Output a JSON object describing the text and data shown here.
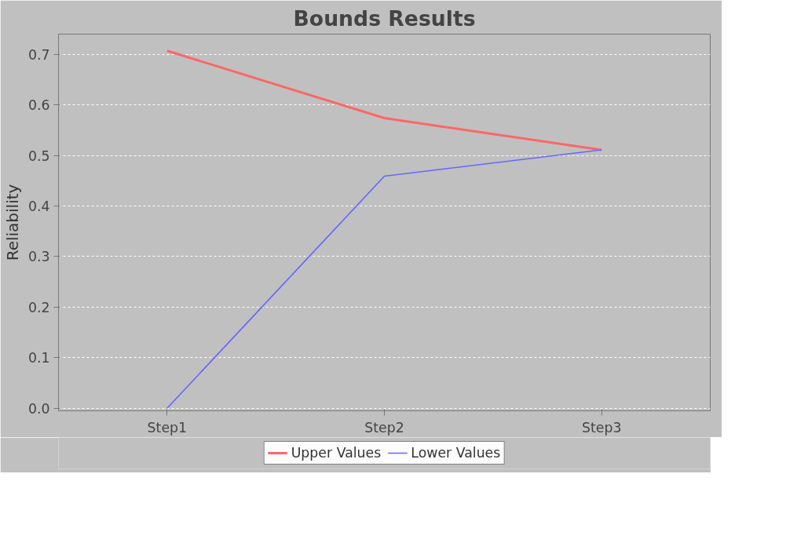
{
  "chart_data": {
    "type": "line",
    "title": "Bounds Results",
    "ylabel": "Reliability",
    "categories": [
      "Step1",
      "Step2",
      "Step3"
    ],
    "series": [
      {
        "name": "Upper Values",
        "color": "#ff6666",
        "values": [
          0.707,
          0.574,
          0.511
        ]
      },
      {
        "name": "Lower Values",
        "color": "#6666ff",
        "values": [
          0.0,
          0.459,
          0.511
        ]
      }
    ],
    "ylim": [
      -0.005,
      0.74
    ],
    "yticks": [
      {
        "value": 0,
        "label": "0.0"
      },
      0.1,
      0.2,
      0.3,
      0.4,
      0.5,
      0.6,
      0.7
    ],
    "grid": "y",
    "legend": "bottom",
    "line_style": "solid"
  }
}
